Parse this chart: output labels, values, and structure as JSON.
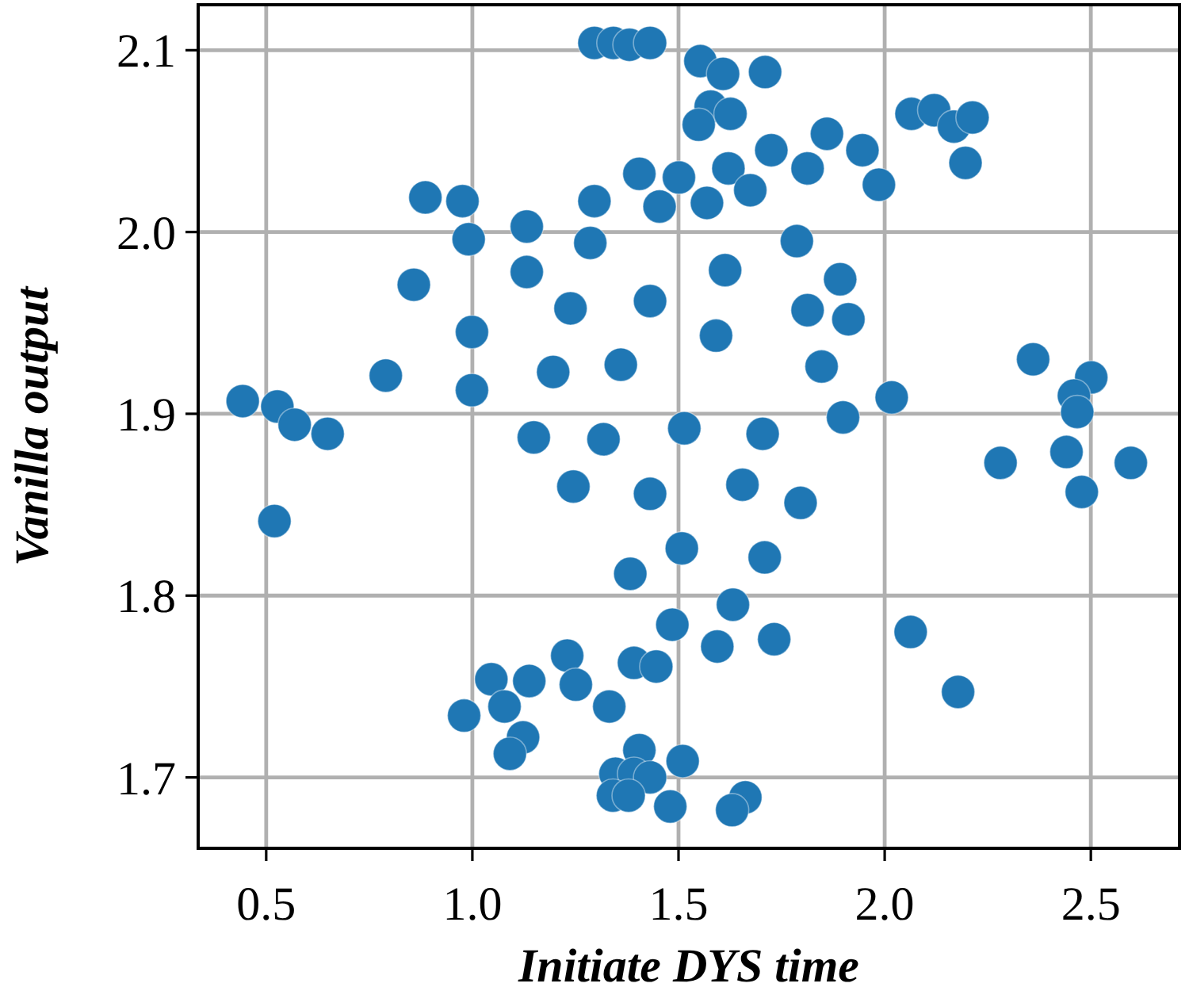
{
  "chart_data": {
    "type": "scatter",
    "xlabel": "Initiate DYS time",
    "ylabel": "Vanilla output",
    "xlim": [
      0.335,
      2.715
    ],
    "ylim": [
      1.661,
      2.125
    ],
    "xticks": [
      0.5,
      {
        "value": 1,
        "label": "1.0"
      },
      1.5,
      {
        "value": 2,
        "label": "2.0"
      },
      2.5
    ],
    "yticks": [
      1.7,
      1.8,
      1.9,
      {
        "value": 2,
        "label": "2.0"
      },
      2.1
    ],
    "grid": true,
    "marker": "circle",
    "color": "#1f77b4",
    "x": [
      1.296,
      1.342,
      1.381,
      1.431,
      1.553,
      1.608,
      1.71,
      1.578,
      1.549,
      1.626,
      1.405,
      1.501,
      1.454,
      1.86,
      1.946,
      1.725,
      1.813,
      1.986,
      1.621,
      1.674,
      1.569,
      2.065,
      2.12,
      2.168,
      2.213,
      2.196,
      0.886,
      0.976,
      0.991,
      1.132,
      1.296,
      1.286,
      1.132,
      0.858,
      1.238,
      1.431,
      0.999,
      0.79,
      1.196,
      1.36,
      0.999,
      0.443,
      1.787,
      1.613,
      1.892,
      1.813,
      1.912,
      1.591,
      1.847,
      2.017,
      2.36,
      2.501,
      2.459,
      2.467,
      1.899,
      1.704,
      0.527,
      0.569,
      0.649,
      1.149,
      1.318,
      1.514,
      1.245,
      1.431,
      0.52,
      1.508,
      1.383,
      1.485,
      1.23,
      1.392,
      1.446,
      1.046,
      1.138,
      1.251,
      1.078,
      1.332,
      0.98,
      1.123,
      1.091,
      1.405,
      1.347,
      1.392,
      1.431,
      1.341,
      1.379,
      1.51,
      1.48,
      2.281,
      2.441,
      2.597,
      2.478,
      1.655,
      1.796,
      1.709,
      1.632,
      1.594,
      1.732,
      2.063,
      2.178,
      1.662,
      1.63
    ],
    "values": [
      2.104,
      2.104,
      2.103,
      2.104,
      2.094,
      2.087,
      2.088,
      2.069,
      2.059,
      2.065,
      2.032,
      2.03,
      2.014,
      2.054,
      2.045,
      2.045,
      2.035,
      2.026,
      2.035,
      2.023,
      2.016,
      2.065,
      2.067,
      2.058,
      2.063,
      2.038,
      2.019,
      2.017,
      1.996,
      2.003,
      2.017,
      1.994,
      1.978,
      1.971,
      1.958,
      1.962,
      1.945,
      1.921,
      1.923,
      1.927,
      1.913,
      1.907,
      1.995,
      1.979,
      1.974,
      1.957,
      1.952,
      1.943,
      1.926,
      1.909,
      1.93,
      1.92,
      1.91,
      1.901,
      1.898,
      1.889,
      1.904,
      1.894,
      1.889,
      1.887,
      1.886,
      1.892,
      1.86,
      1.856,
      1.841,
      1.826,
      1.812,
      1.784,
      1.767,
      1.763,
      1.761,
      1.754,
      1.753,
      1.751,
      1.739,
      1.739,
      1.734,
      1.722,
      1.713,
      1.715,
      1.702,
      1.702,
      1.7,
      1.69,
      1.69,
      1.709,
      1.684,
      1.873,
      1.879,
      1.873,
      1.857,
      1.861,
      1.851,
      1.821,
      1.795,
      1.772,
      1.776,
      1.78,
      1.747,
      1.689,
      1.682
    ]
  }
}
